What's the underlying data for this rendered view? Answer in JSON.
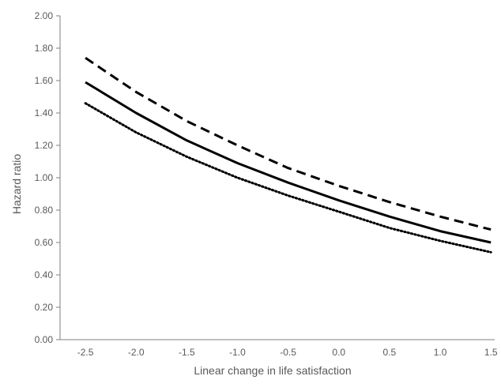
{
  "chart_data": {
    "type": "line",
    "title": "",
    "xlabel": "Linear change in life satisfaction",
    "ylabel": "Hazard ratio",
    "xlim": [
      -2.75,
      1.6
    ],
    "ylim": [
      0,
      2
    ],
    "x_ticks": [
      -2.5,
      -2.0,
      -1.5,
      -1.0,
      -0.5,
      0.0,
      0.5,
      1.0,
      1.5
    ],
    "x_tick_labels": [
      "-2.5",
      "-2.0",
      "-1.5",
      "-1.0",
      "-0.5",
      "0.0",
      "0.5",
      "1.0",
      "1.5"
    ],
    "y_ticks": [
      0,
      0.2,
      0.4,
      0.6,
      0.8,
      1.0,
      1.2,
      1.4,
      1.6,
      1.8,
      2.0
    ],
    "y_tick_labels": [
      "0.00",
      "0.20",
      "0.40",
      "0.60",
      "0.80",
      "1.00",
      "1.20",
      "1.40",
      "1.60",
      "1.80",
      "2.00"
    ],
    "grid": false,
    "legend": "none",
    "series": [
      {
        "style": "dashed",
        "color": "#000000",
        "x": [
          -2.5,
          -2.0,
          -1.5,
          -1.0,
          -0.5,
          0.0,
          0.5,
          1.0,
          1.5
        ],
        "values": [
          1.74,
          1.53,
          1.35,
          1.2,
          1.06,
          0.95,
          0.85,
          0.76,
          0.68
        ]
      },
      {
        "style": "solid",
        "color": "#000000",
        "x": [
          -2.5,
          -2.0,
          -1.5,
          -1.0,
          -0.5,
          0.0,
          0.5,
          1.0,
          1.5
        ],
        "values": [
          1.59,
          1.4,
          1.23,
          1.09,
          0.97,
          0.86,
          0.76,
          0.67,
          0.6
        ]
      },
      {
        "style": "dotted",
        "color": "#000000",
        "x": [
          -2.5,
          -2.0,
          -1.5,
          -1.0,
          -0.5,
          0.0,
          0.5,
          1.0,
          1.5
        ],
        "values": [
          1.46,
          1.28,
          1.13,
          1.0,
          0.89,
          0.79,
          0.69,
          0.61,
          0.54
        ]
      }
    ]
  }
}
